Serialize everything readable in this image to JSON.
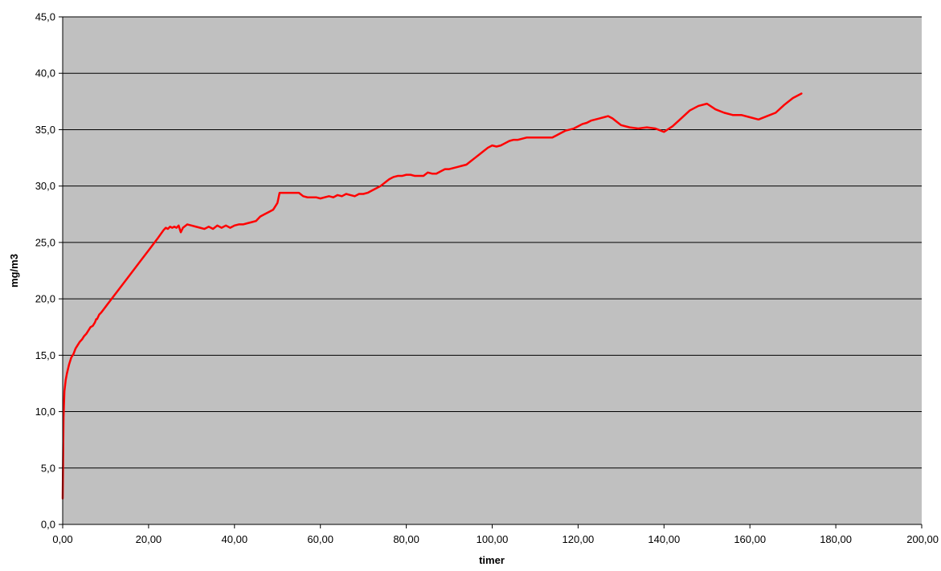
{
  "colors": {
    "plot_background": "#c0c0c0",
    "page_background": "#ffffff",
    "gridline": "#000000",
    "axis": "#000000",
    "series": "#ff0000"
  },
  "chart_data": {
    "type": "line",
    "title": "",
    "xlabel": "timer",
    "ylabel": "mg/m3",
    "xlim": [
      0,
      200
    ],
    "ylim": [
      0,
      45
    ],
    "grid": "horizontal major gridlines",
    "legend": "none",
    "x_ticks": [
      0,
      20,
      40,
      60,
      80,
      100,
      120,
      140,
      160,
      180,
      200
    ],
    "x_tick_labels": [
      "0,00",
      "20,00",
      "40,00",
      "60,00",
      "80,00",
      "100,00",
      "120,00",
      "140,00",
      "160,00",
      "180,00",
      "200,00"
    ],
    "y_ticks": [
      0,
      5,
      10,
      15,
      20,
      25,
      30,
      35,
      40,
      45
    ],
    "y_tick_labels": [
      "0,0",
      "5,0",
      "10,0",
      "15,0",
      "20,0",
      "25,0",
      "30,0",
      "35,0",
      "40,0",
      "45,0"
    ],
    "series": [
      {
        "color": "#ff0000",
        "x": [
          0.0,
          0.2,
          0.4,
          0.7,
          1.0,
          1.5,
          2.0,
          2.5,
          3.0,
          3.5,
          4.0,
          4.5,
          5.0,
          5.5,
          6.0,
          6.5,
          7.0,
          7.5,
          7.8,
          8.0,
          8.5,
          9.0,
          10.0,
          12.0,
          15.0,
          18.0,
          20.0,
          22.0,
          23.5,
          24.0,
          24.5,
          25.0,
          25.5,
          26.0,
          26.5,
          27.0,
          27.5,
          28.0,
          29.0,
          30.0,
          31.0,
          32.0,
          33.0,
          34.0,
          34.5,
          35.0,
          36.0,
          37.0,
          38.0,
          39.0,
          40.0,
          41.0,
          42.0,
          43.0,
          44.0,
          45.0,
          46.0,
          47.0,
          48.0,
          49.0,
          50.0,
          50.5,
          51.0,
          52.0,
          53.0,
          55.0,
          56.0,
          57.0,
          58.0,
          59.0,
          60.0,
          61.0,
          62.0,
          63.0,
          64.0,
          65.0,
          66.0,
          67.0,
          68.0,
          69.0,
          70.0,
          71.0,
          72.0,
          74.0,
          76.0,
          77.0,
          78.0,
          79.0,
          80.0,
          81.0,
          82.0,
          83.0,
          84.0,
          85.0,
          86.0,
          87.0,
          88.0,
          89.0,
          90.0,
          91.0,
          92.0,
          93.0,
          94.0,
          95.0,
          96.0,
          97.0,
          98.0,
          99.0,
          100.0,
          101.0,
          102.0,
          103.0,
          104.0,
          105.0,
          106.0,
          107.0,
          108.0,
          110.0,
          112.0,
          114.0,
          115.0,
          116.0,
          117.0,
          118.0,
          119.0,
          120.0,
          121.0,
          122.0,
          123.0,
          124.0,
          125.0,
          126.0,
          127.0,
          128.0,
          129.0,
          130.0,
          132.0,
          134.0,
          136.0,
          138.0,
          140.0,
          142.0,
          144.0,
          146.0,
          148.0,
          150.0,
          152.0,
          154.0,
          156.0,
          158.0,
          160.0,
          162.0,
          164.0,
          166.0,
          168.0,
          170.0,
          172.0
        ],
        "y": [
          2.3,
          9.5,
          11.8,
          12.8,
          13.4,
          14.2,
          14.8,
          15.1,
          15.6,
          15.9,
          16.2,
          16.4,
          16.7,
          16.9,
          17.2,
          17.5,
          17.6,
          17.9,
          18.2,
          18.2,
          18.6,
          18.8,
          19.3,
          20.3,
          21.8,
          23.3,
          24.3,
          25.3,
          26.1,
          26.3,
          26.2,
          26.4,
          26.3,
          26.4,
          26.3,
          26.5,
          25.9,
          26.3,
          26.6,
          26.5,
          26.4,
          26.3,
          26.2,
          26.4,
          26.3,
          26.2,
          26.5,
          26.3,
          26.5,
          26.3,
          26.5,
          26.6,
          26.6,
          26.7,
          26.8,
          26.9,
          27.3,
          27.5,
          27.7,
          27.9,
          28.5,
          29.4,
          29.4,
          29.4,
          29.4,
          29.4,
          29.1,
          29.0,
          29.0,
          29.0,
          28.9,
          29.0,
          29.1,
          29.0,
          29.2,
          29.1,
          29.3,
          29.2,
          29.1,
          29.3,
          29.3,
          29.4,
          29.6,
          30.0,
          30.6,
          30.8,
          30.9,
          30.9,
          31.0,
          31.0,
          30.9,
          30.9,
          30.9,
          31.2,
          31.1,
          31.1,
          31.3,
          31.5,
          31.5,
          31.6,
          31.7,
          31.8,
          31.9,
          32.2,
          32.5,
          32.8,
          33.1,
          33.4,
          33.6,
          33.5,
          33.6,
          33.8,
          34.0,
          34.1,
          34.1,
          34.2,
          34.3,
          34.3,
          34.3,
          34.3,
          34.5,
          34.7,
          34.9,
          35.0,
          35.1,
          35.3,
          35.5,
          35.6,
          35.8,
          35.9,
          36.0,
          36.1,
          36.2,
          36.0,
          35.7,
          35.4,
          35.2,
          35.1,
          35.2,
          35.1,
          34.8,
          35.3,
          36.0,
          36.7,
          37.1,
          37.3,
          36.8,
          36.5,
          36.3,
          36.3,
          36.1,
          35.9,
          36.2,
          36.5,
          37.2,
          37.8,
          38.2
        ]
      }
    ]
  }
}
